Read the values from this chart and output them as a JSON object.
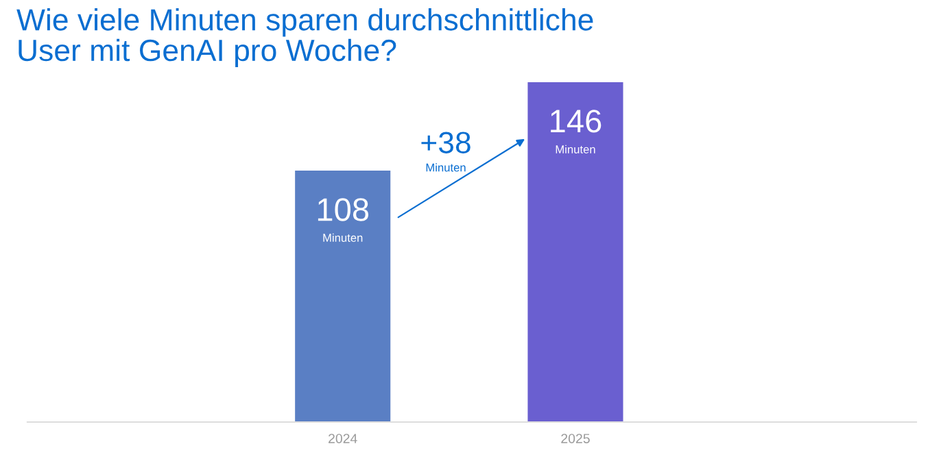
{
  "chart_data": {
    "type": "bar",
    "title": "Wie viele Minuten sparen durchschnittliche\nUser mit GenAI pro Woche?",
    "categories": [
      "2024",
      "2025"
    ],
    "values": [
      108,
      146
    ],
    "colors": [
      "#5a7fc4",
      "#6a5fd0"
    ],
    "value_labels": [
      "108\nMinuten",
      "146\nMinuten"
    ],
    "annotations": [
      "+38\nMinuten"
    ],
    "grid": false,
    "legend": false,
    "tick_labels": "x"
  }
}
